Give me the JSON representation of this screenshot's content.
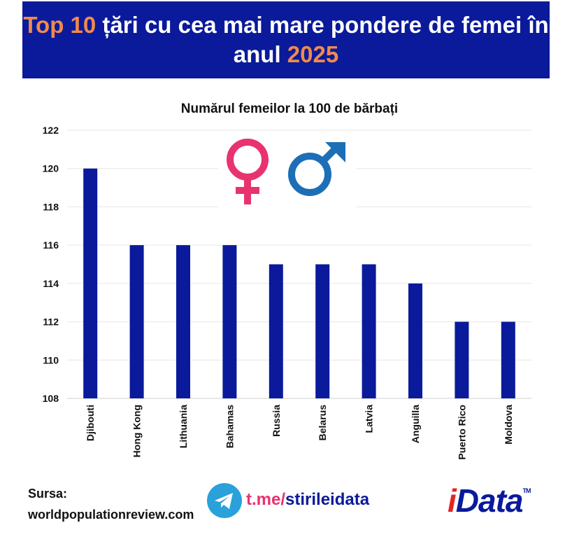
{
  "header": {
    "line1_accent": "Top 10",
    "line1_rest": " țări cu cea mai mare pondere de femei în",
    "line2_rest": "anul ",
    "line2_accent": "2025"
  },
  "colors": {
    "header_bg": "#0a1a9b",
    "accent": "#f08a4b",
    "bar": "#0a1a9b",
    "female_symbol": "#e8336f",
    "male_symbol": "#1c6fb6",
    "telegram": "#2aa1da",
    "logo_red": "#e52421"
  },
  "chart_data": {
    "type": "bar",
    "title": "Numărul femeilor la 100 de bărbați",
    "categories": [
      "Djibouti",
      "Hong Kong",
      "Lithuania",
      "Bahamas",
      "Russia",
      "Belarus",
      "Latvia",
      "Anguilla",
      "Puerto Rico",
      "Moldova"
    ],
    "values": [
      120,
      116,
      116,
      116,
      115,
      115,
      115,
      114,
      112,
      112
    ],
    "ylim": [
      108,
      122
    ],
    "yticks": [
      108,
      110,
      112,
      114,
      116,
      118,
      120,
      122
    ],
    "grid": true,
    "icons": [
      "female-symbol-icon",
      "male-symbol-icon"
    ]
  },
  "footer": {
    "source_label": "Sursa:",
    "source_value": "worldpopulationreview.com",
    "link_part1": "t.me/",
    "link_part2": "stirileidata",
    "logo_i": "i",
    "logo_rest": "Data",
    "logo_tm": "TM"
  }
}
